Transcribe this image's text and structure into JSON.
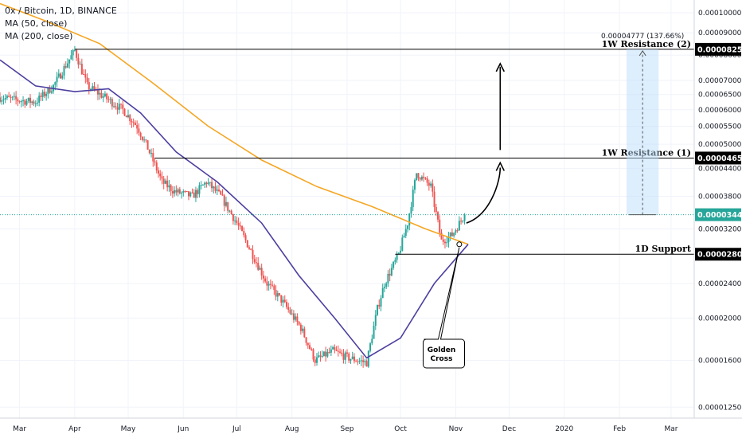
{
  "legend": {
    "symbol": "0x / Bitcoin, 1D, BINANCE",
    "ma50": "MA (50, close)",
    "ma200": "MA (200, close)"
  },
  "colors": {
    "up": "#26a69a",
    "down": "#ef5350",
    "ma50": "#4c3fa0",
    "ma200": "#f5a623",
    "price_line": "#26a69a",
    "measure_fill": "#bbdefb",
    "grid": "#f0f3fa"
  },
  "price_axis_ticks": [
    "0.00010000",
    "0.00009000",
    "0.00008000",
    "0.00007000",
    "0.00006500",
    "0.00006000",
    "0.00005500",
    "0.00005000",
    "0.00004400",
    "0.00003800",
    "0.00003200",
    "0.00002400",
    "0.00002000",
    "0.00001600",
    "0.00001250"
  ],
  "time_axis_ticks": [
    "Mar",
    "Apr",
    "May",
    "Jun",
    "Jul",
    "Aug",
    "Sep",
    "Oct",
    "Nov",
    "Dec",
    "2020",
    "Feb",
    "Mar"
  ],
  "levels": [
    {
      "label": "1W Resistance (2)",
      "price": "0.00008250",
      "value": 8.25e-05
    },
    {
      "label": "1W Resistance (1)",
      "price": "0.00004650",
      "value": 4.65e-05
    },
    {
      "label": "1D Support",
      "price": "0.00002800",
      "value": 2.8e-05
    }
  ],
  "current_price": {
    "price": "0.00003449",
    "value": 3.449e-05
  },
  "measure": {
    "label": "0.00004777 (137.66%)"
  },
  "annotation": {
    "line1": "Golden",
    "line2": "Cross"
  },
  "chart_data": {
    "type": "candlestick",
    "y_scale": "log",
    "ylim": [
      1.18e-05,
      0.000107
    ],
    "x_range": [
      "2019-02-18",
      "2020-03-14"
    ],
    "price_path": [
      [
        "2019-02-18",
        6.4e-05
      ],
      [
        "2019-03-01",
        6.3e-05
      ],
      [
        "2019-03-10",
        6.25e-05
      ],
      [
        "2019-03-20",
        6.8e-05
      ],
      [
        "2019-04-01",
        8.2e-05
      ],
      [
        "2019-04-08",
        6.8e-05
      ],
      [
        "2019-04-18",
        6.4e-05
      ],
      [
        "2019-04-28",
        6e-05
      ],
      [
        "2019-05-06",
        5.5e-05
      ],
      [
        "2019-05-12",
        4.9e-05
      ],
      [
        "2019-05-20",
        4.1e-05
      ],
      [
        "2019-05-27",
        3.9e-05
      ],
      [
        "2019-06-06",
        3.8e-05
      ],
      [
        "2019-06-14",
        4.1e-05
      ],
      [
        "2019-06-22",
        3.8e-05
      ],
      [
        "2019-07-01",
        3.3e-05
      ],
      [
        "2019-07-08",
        2.9e-05
      ],
      [
        "2019-07-18",
        2.4e-05
      ],
      [
        "2019-07-26",
        2.2e-05
      ],
      [
        "2019-08-06",
        1.9e-05
      ],
      [
        "2019-08-14",
        1.6e-05
      ],
      [
        "2019-08-24",
        1.68e-05
      ],
      [
        "2019-09-02",
        1.62e-05
      ],
      [
        "2019-09-12",
        1.58e-05
      ],
      [
        "2019-09-18",
        2.1e-05
      ],
      [
        "2019-09-22",
        2.4e-05
      ],
      [
        "2019-09-30",
        2.8e-05
      ],
      [
        "2019-10-05",
        3.3e-05
      ],
      [
        "2019-10-10",
        4.3e-05
      ],
      [
        "2019-10-18",
        4e-05
      ],
      [
        "2019-10-24",
        3e-05
      ],
      [
        "2019-10-30",
        3.1e-05
      ],
      [
        "2019-11-06",
        3.449e-05
      ]
    ],
    "ma50_path": [
      [
        "2019-02-18",
        7.8e-05
      ],
      [
        "2019-03-10",
        6.8e-05
      ],
      [
        "2019-04-01",
        6.6e-05
      ],
      [
        "2019-04-20",
        6.7e-05
      ],
      [
        "2019-05-08",
        5.9e-05
      ],
      [
        "2019-05-28",
        4.8e-05
      ],
      [
        "2019-06-20",
        4.1e-05
      ],
      [
        "2019-07-15",
        3.3e-05
      ],
      [
        "2019-08-05",
        2.5e-05
      ],
      [
        "2019-08-25",
        2e-05
      ],
      [
        "2019-09-12",
        1.62e-05
      ],
      [
        "2019-10-01",
        1.8e-05
      ],
      [
        "2019-10-20",
        2.4e-05
      ],
      [
        "2019-11-08",
        2.95e-05
      ]
    ],
    "ma200_path": [
      [
        "2019-02-18",
        0.000105
      ],
      [
        "2019-03-15",
        9.6e-05
      ],
      [
        "2019-04-15",
        8.5e-05
      ],
      [
        "2019-05-15",
        6.9e-05
      ],
      [
        "2019-06-15",
        5.5e-05
      ],
      [
        "2019-07-15",
        4.6e-05
      ],
      [
        "2019-08-15",
        4e-05
      ],
      [
        "2019-09-15",
        3.6e-05
      ],
      [
        "2019-10-15",
        3.2e-05
      ],
      [
        "2019-11-08",
        2.95e-05
      ]
    ],
    "xlabel": "",
    "ylabel": ""
  }
}
